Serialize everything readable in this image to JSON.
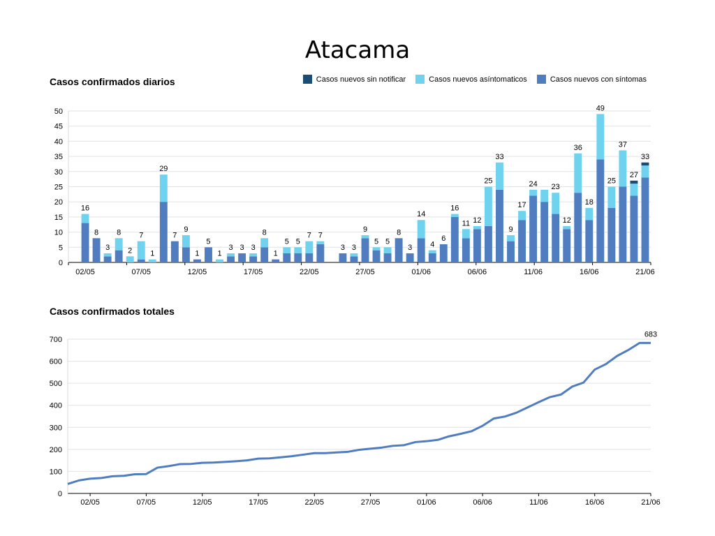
{
  "title": "Atacama",
  "legend": [
    {
      "label": "Casos nuevos sin notificar",
      "color": "#1a4d73"
    },
    {
      "label": "Casos nuevos asíntomaticos",
      "color": "#6fd2ef"
    },
    {
      "label": "Casos nuevos con síntomas",
      "color": "#4f7dbf"
    }
  ],
  "chart_data": [
    {
      "type": "bar",
      "title": "Casos confirmados diarios",
      "stacked": true,
      "ylim": [
        0,
        50
      ],
      "yticks": [
        0,
        5,
        10,
        15,
        20,
        25,
        30,
        35,
        40,
        45,
        50
      ],
      "grid": true,
      "legend_position": "top-right",
      "days": [
        "01/05",
        "02/05",
        "03/05",
        "04/05",
        "05/05",
        "06/05",
        "07/05",
        "08/05",
        "09/05",
        "10/05",
        "11/05",
        "12/05",
        "13/05",
        "14/05",
        "15/05",
        "16/05",
        "17/05",
        "18/05",
        "19/05",
        "20/05",
        "21/05",
        "22/05",
        "23/05",
        "24/05",
        "25/05",
        "26/05",
        "27/05",
        "28/05",
        "29/05",
        "30/05",
        "31/05",
        "01/06",
        "02/06",
        "03/06",
        "04/06",
        "05/06",
        "06/06",
        "07/06",
        "08/06",
        "09/06",
        "10/06",
        "11/06",
        "12/06",
        "13/06",
        "14/06",
        "15/06",
        "16/06",
        "17/06",
        "18/06",
        "19/06",
        "20/06",
        "21/06"
      ],
      "tick_labels": [
        "02/05",
        "07/05",
        "12/05",
        "17/05",
        "22/05",
        "27/05",
        "01/06",
        "06/06",
        "11/06",
        "16/06",
        "21/06"
      ],
      "tick_indices": [
        1,
        6,
        11,
        16,
        21,
        26,
        31,
        36,
        41,
        46,
        51
      ],
      "series": [
        {
          "name": "Casos nuevos con síntomas",
          "color": "#4f7dbf",
          "values": [
            0,
            13,
            8,
            2,
            4,
            0,
            1,
            0,
            20,
            7,
            5,
            1,
            5,
            0,
            2,
            3,
            2,
            5,
            1,
            3,
            3,
            3,
            6,
            0,
            3,
            2,
            8,
            4,
            3,
            8,
            3,
            8,
            3,
            6,
            15,
            8,
            11,
            12,
            24,
            7,
            14,
            22,
            20,
            16,
            11,
            23,
            14,
            34,
            18,
            25,
            22,
            28
          ]
        },
        {
          "name": "Casos nuevos asíntomaticos",
          "color": "#6fd2ef",
          "values": [
            0,
            3,
            0,
            1,
            4,
            2,
            6,
            1,
            9,
            0,
            4,
            0,
            0,
            1,
            1,
            0,
            1,
            3,
            0,
            2,
            2,
            4,
            1,
            0,
            0,
            1,
            1,
            1,
            2,
            0,
            0,
            6,
            1,
            0,
            1,
            3,
            1,
            13,
            9,
            2,
            3,
            2,
            4,
            7,
            1,
            13,
            4,
            15,
            7,
            12,
            4,
            4
          ]
        },
        {
          "name": "Casos nuevos sin notificar",
          "color": "#1a4d73",
          "values": [
            0,
            0,
            0,
            0,
            0,
            0,
            0,
            0,
            0,
            0,
            0,
            0,
            0,
            0,
            0,
            0,
            0,
            0,
            0,
            0,
            0,
            0,
            0,
            0,
            0,
            0,
            0,
            0,
            0,
            0,
            0,
            0,
            0,
            0,
            0,
            0,
            0,
            0,
            0,
            0,
            0,
            0,
            0,
            0,
            0,
            0,
            0,
            0,
            0,
            0,
            1,
            1
          ]
        }
      ],
      "data_labels": [
        "",
        "16",
        "8",
        "3",
        "8",
        "2",
        "7",
        "1",
        "29",
        "7",
        "9",
        "1",
        "5",
        "1",
        "3",
        "3",
        "3",
        "8",
        "1",
        "5",
        "5",
        "7",
        "7",
        "",
        "3",
        "3",
        "9",
        "5",
        "5",
        "8",
        "3",
        "14",
        "4",
        "6",
        "16",
        "11",
        "12",
        "25",
        "33",
        "9",
        "17",
        "24",
        "",
        "23",
        "12",
        "36",
        "18",
        "49",
        "25",
        "37",
        "27",
        "33"
      ]
    },
    {
      "type": "line",
      "title": "Casos confirmados totales",
      "ylim": [
        0,
        700
      ],
      "yticks": [
        0,
        100,
        200,
        300,
        400,
        500,
        600,
        700
      ],
      "grid": true,
      "days": [
        "30/04",
        "01/05",
        "02/05",
        "03/05",
        "04/05",
        "05/05",
        "06/05",
        "07/05",
        "08/05",
        "09/05",
        "10/05",
        "11/05",
        "12/05",
        "13/05",
        "14/05",
        "15/05",
        "16/05",
        "17/05",
        "18/05",
        "19/05",
        "20/05",
        "21/05",
        "22/05",
        "23/05",
        "24/05",
        "25/05",
        "26/05",
        "27/05",
        "28/05",
        "29/05",
        "30/05",
        "31/05",
        "01/06",
        "02/06",
        "03/06",
        "04/06",
        "05/06",
        "06/06",
        "07/06",
        "08/06",
        "09/06",
        "10/06",
        "11/06",
        "12/06",
        "13/06",
        "14/06",
        "15/06",
        "16/06",
        "17/06",
        "18/06",
        "19/06",
        "20/06",
        "21/06"
      ],
      "tick_labels": [
        "02/05",
        "07/05",
        "12/05",
        "17/05",
        "22/05",
        "27/05",
        "01/06",
        "06/06",
        "11/06",
        "16/06",
        "21/06"
      ],
      "tick_indices": [
        2,
        7,
        12,
        17,
        22,
        27,
        32,
        37,
        42,
        47,
        52
      ],
      "series": [
        {
          "name": "",
          "color": "#4f7dbf",
          "values": [
            43,
            59,
            67,
            70,
            78,
            80,
            87,
            88,
            117,
            124,
            133,
            134,
            139,
            140,
            143,
            146,
            150,
            158,
            159,
            164,
            169,
            176,
            183,
            183,
            186,
            189,
            198,
            203,
            208,
            216,
            219,
            233,
            237,
            243,
            259,
            270,
            282,
            307,
            340,
            349,
            366,
            390,
            414,
            437,
            449,
            485,
            503,
            562,
            587,
            624,
            651,
            683,
            683
          ]
        }
      ],
      "end_label": "683"
    }
  ]
}
